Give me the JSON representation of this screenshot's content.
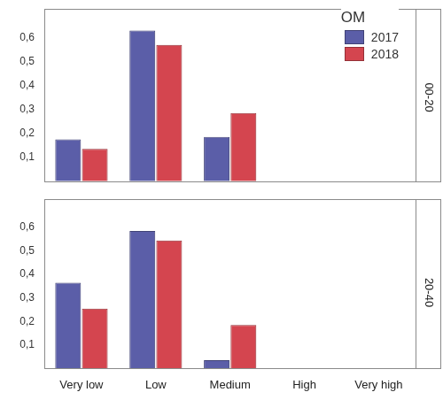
{
  "chart_data": [
    {
      "type": "bar",
      "title": "00-20",
      "categories": [
        "Very low",
        "Low",
        "Medium",
        "High",
        "Very high"
      ],
      "series": [
        {
          "name": "2017",
          "color": "#5b5ea8",
          "values": [
            0.175,
            0.63,
            0.185,
            null,
            null
          ]
        },
        {
          "name": "2018",
          "color": "#d4454f",
          "values": [
            0.135,
            0.57,
            0.285,
            null,
            null
          ]
        }
      ],
      "ylim": [
        0,
        0.72
      ],
      "yticks": [
        {
          "value": 0.1,
          "label": "0,1"
        },
        {
          "value": 0.2,
          "label": "0,2"
        },
        {
          "value": 0.3,
          "label": "0,3"
        },
        {
          "value": 0.4,
          "label": "0,4"
        },
        {
          "value": 0.5,
          "label": "0,5"
        },
        {
          "value": 0.6,
          "label": "0,6"
        }
      ],
      "grid": false,
      "legend": "upper right",
      "legend_title": "OM",
      "tick_labels": "y"
    },
    {
      "type": "bar",
      "title": "20-40",
      "categories": [
        "Very low",
        "Low",
        "Medium",
        "High",
        "Very high"
      ],
      "series": [
        {
          "name": "2017",
          "color": "#5b5ea8",
          "values": [
            0.365,
            0.585,
            0.035,
            null,
            null
          ]
        },
        {
          "name": "2018",
          "color": "#d4454f",
          "values": [
            0.255,
            0.545,
            0.185,
            null,
            null
          ]
        }
      ],
      "ylim": [
        0,
        0.72
      ],
      "yticks": [
        {
          "value": 0.1,
          "label": "0,1"
        },
        {
          "value": 0.2,
          "label": "0,2"
        },
        {
          "value": 0.3,
          "label": "0,3"
        },
        {
          "value": 0.4,
          "label": "0,4"
        },
        {
          "value": 0.5,
          "label": "0,5"
        },
        {
          "value": 0.6,
          "label": "0,6"
        }
      ],
      "grid": false
    }
  ]
}
